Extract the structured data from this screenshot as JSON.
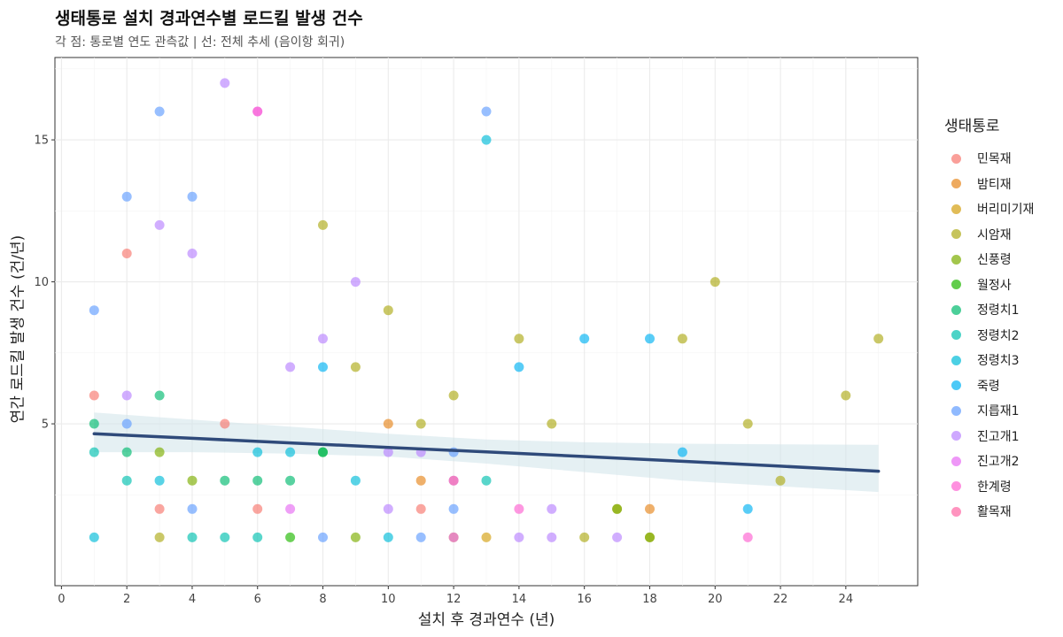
{
  "chart_data": {
    "type": "scatter",
    "title": "생태통로 설치 경과연수별 로드킬 발생 건수",
    "subtitle": "각 점: 통로별 연도 관측값  |  선: 전체 추세 (음이항 회귀)",
    "xlabel": "설치 후 경과연수 (년)",
    "ylabel": "연간 로드킬 발생 건수 (건/년)",
    "xlim": [
      -0.2,
      26.2
    ],
    "ylim": [
      -0.7,
      17.9
    ],
    "x_ticks": [
      0,
      2,
      4,
      6,
      8,
      10,
      12,
      14,
      16,
      18,
      20,
      22,
      24
    ],
    "y_ticks": [
      5,
      10,
      15
    ],
    "grid": true,
    "legend": {
      "title": "생태통로",
      "position": "right"
    },
    "series": [
      {
        "name": "민목재",
        "color": "#F8766D",
        "points": [
          [
            1,
            6
          ],
          [
            2,
            11
          ],
          [
            3,
            2
          ],
          [
            5,
            5
          ],
          [
            6,
            2
          ],
          [
            11,
            2
          ]
        ]
      },
      {
        "name": "밤티재",
        "color": "#E7861B",
        "points": [
          [
            10,
            5
          ],
          [
            11,
            3
          ],
          [
            18,
            2
          ]
        ]
      },
      {
        "name": "버리미기재",
        "color": "#D4A010",
        "points": [
          [
            12,
            1
          ],
          [
            13,
            1
          ]
        ]
      },
      {
        "name": "시암재",
        "color": "#AEAB17",
        "points": [
          [
            3,
            1
          ],
          [
            8,
            12
          ],
          [
            9,
            7
          ],
          [
            10,
            9
          ],
          [
            11,
            5
          ],
          [
            12,
            6
          ],
          [
            14,
            8
          ],
          [
            15,
            5
          ],
          [
            16,
            1
          ],
          [
            17,
            2
          ],
          [
            18,
            1
          ],
          [
            19,
            8
          ],
          [
            20,
            10
          ],
          [
            21,
            5
          ],
          [
            22,
            3
          ],
          [
            24,
            6
          ],
          [
            25,
            8
          ]
        ]
      },
      {
        "name": "신풍령",
        "color": "#7CAE00",
        "points": [
          [
            3,
            4
          ],
          [
            4,
            3
          ],
          [
            9,
            1
          ],
          [
            17,
            2
          ],
          [
            18,
            1
          ]
        ]
      },
      {
        "name": "월정사",
        "color": "#1FB800",
        "points": [
          [
            7,
            1
          ],
          [
            8,
            4
          ]
        ]
      },
      {
        "name": "정령치1",
        "color": "#00BA6E",
        "points": [
          [
            1,
            5
          ],
          [
            2,
            4
          ],
          [
            3,
            6
          ],
          [
            5,
            3
          ],
          [
            6,
            3
          ],
          [
            7,
            3
          ],
          [
            8,
            4
          ]
        ]
      },
      {
        "name": "정령치2",
        "color": "#00C0AF",
        "points": [
          [
            1,
            4
          ],
          [
            2,
            3
          ],
          [
            4,
            1
          ],
          [
            5,
            1
          ],
          [
            6,
            1
          ],
          [
            13,
            3
          ]
        ]
      },
      {
        "name": "정령치3",
        "color": "#00BCD8",
        "points": [
          [
            1,
            1
          ],
          [
            3,
            3
          ],
          [
            6,
            4
          ],
          [
            7,
            4
          ],
          [
            9,
            3
          ],
          [
            10,
            1
          ],
          [
            13,
            15
          ]
        ]
      },
      {
        "name": "죽령",
        "color": "#00B2F3",
        "points": [
          [
            8,
            7
          ],
          [
            14,
            7
          ],
          [
            16,
            8
          ],
          [
            18,
            8
          ],
          [
            19,
            4
          ],
          [
            21,
            2
          ]
        ]
      },
      {
        "name": "지릅재1",
        "color": "#619CFF",
        "points": [
          [
            1,
            9
          ],
          [
            2,
            13
          ],
          [
            2,
            5
          ],
          [
            3,
            16
          ],
          [
            4,
            13
          ],
          [
            4,
            2
          ],
          [
            8,
            1
          ],
          [
            11,
            1
          ],
          [
            12,
            4
          ],
          [
            12,
            2
          ],
          [
            13,
            16
          ]
        ]
      },
      {
        "name": "진고개1",
        "color": "#B983FF",
        "points": [
          [
            2,
            6
          ],
          [
            3,
            12
          ],
          [
            4,
            11
          ],
          [
            5,
            17
          ],
          [
            7,
            7
          ],
          [
            8,
            8
          ],
          [
            9,
            10
          ],
          [
            10,
            4
          ],
          [
            10,
            2
          ],
          [
            11,
            4
          ],
          [
            12,
            3
          ],
          [
            14,
            1
          ],
          [
            15,
            2
          ],
          [
            15,
            1
          ],
          [
            17,
            1
          ]
        ]
      },
      {
        "name": "진고개2",
        "color": "#E76BF3",
        "points": [
          [
            6,
            16
          ],
          [
            7,
            2
          ],
          [
            12,
            1
          ]
        ]
      },
      {
        "name": "한계령",
        "color": "#FD61D1",
        "points": [
          [
            6,
            16
          ],
          [
            14,
            2
          ],
          [
            21,
            1
          ]
        ]
      },
      {
        "name": "활목재",
        "color": "#FF67A4",
        "points": [
          [
            12,
            3
          ]
        ]
      }
    ],
    "trend": {
      "x": [
        1,
        4,
        7,
        10,
        13,
        16,
        19,
        22,
        25
      ],
      "y": [
        4.65,
        4.49,
        4.33,
        4.17,
        4.01,
        3.85,
        3.68,
        3.51,
        3.33
      ],
      "lower": [
        4.0,
        4.0,
        3.95,
        3.85,
        3.6,
        3.3,
        3.0,
        2.8,
        2.6
      ],
      "upper": [
        5.4,
        5.15,
        4.9,
        4.65,
        4.45,
        4.35,
        4.3,
        4.28,
        4.26
      ],
      "color": "#2F4A7A",
      "band_color": "#CFE3EA"
    }
  }
}
